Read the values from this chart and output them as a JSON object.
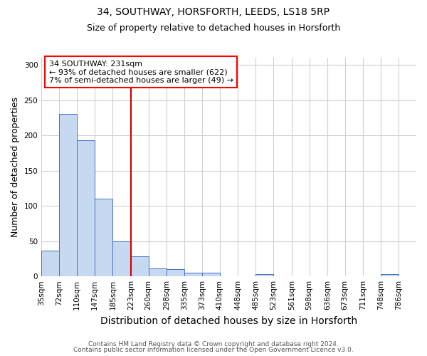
{
  "title1": "34, SOUTHWAY, HORSFORTH, LEEDS, LS18 5RP",
  "title2": "Size of property relative to detached houses in Horsforth",
  "xlabel": "Distribution of detached houses by size in Horsforth",
  "ylabel": "Number of detached properties",
  "footer1": "Contains HM Land Registry data © Crown copyright and database right 2024.",
  "footer2": "Contains public sector information licensed under the Open Government Licence v3.0.",
  "bin_labels": [
    "35sqm",
    "72sqm",
    "110sqm",
    "147sqm",
    "185sqm",
    "223sqm",
    "260sqm",
    "298sqm",
    "335sqm",
    "373sqm",
    "410sqm",
    "448sqm",
    "485sqm",
    "523sqm",
    "561sqm",
    "598sqm",
    "636sqm",
    "673sqm",
    "711sqm",
    "748sqm",
    "786sqm"
  ],
  "bin_edges": [
    35,
    72,
    110,
    147,
    185,
    223,
    260,
    298,
    335,
    373,
    410,
    448,
    485,
    523,
    561,
    598,
    636,
    673,
    711,
    748,
    786,
    823
  ],
  "values": [
    37,
    231,
    193,
    110,
    50,
    28,
    11,
    10,
    5,
    5,
    0,
    0,
    3,
    0,
    0,
    0,
    0,
    0,
    0,
    3,
    0
  ],
  "bar_fill": "#c6d9f0",
  "bar_edge": "#4472c4",
  "property_line_x": 223,
  "annotation_text1": "34 SOUTHWAY: 231sqm",
  "annotation_text2": "← 93% of detached houses are smaller (622)",
  "annotation_text3": "7% of semi-detached houses are larger (49) →",
  "vline_color": "#cc0000",
  "ann_box_edge": "red",
  "ylim": [
    0,
    310
  ],
  "yticks": [
    0,
    50,
    100,
    150,
    200,
    250,
    300
  ],
  "grid_color": "#d0d0d0",
  "bg_color": "white",
  "title_fontsize": 10,
  "subtitle_fontsize": 9,
  "axis_label_fontsize": 9,
  "tick_fontsize": 7.5,
  "footer_fontsize": 6.5,
  "ann_fontsize": 8
}
